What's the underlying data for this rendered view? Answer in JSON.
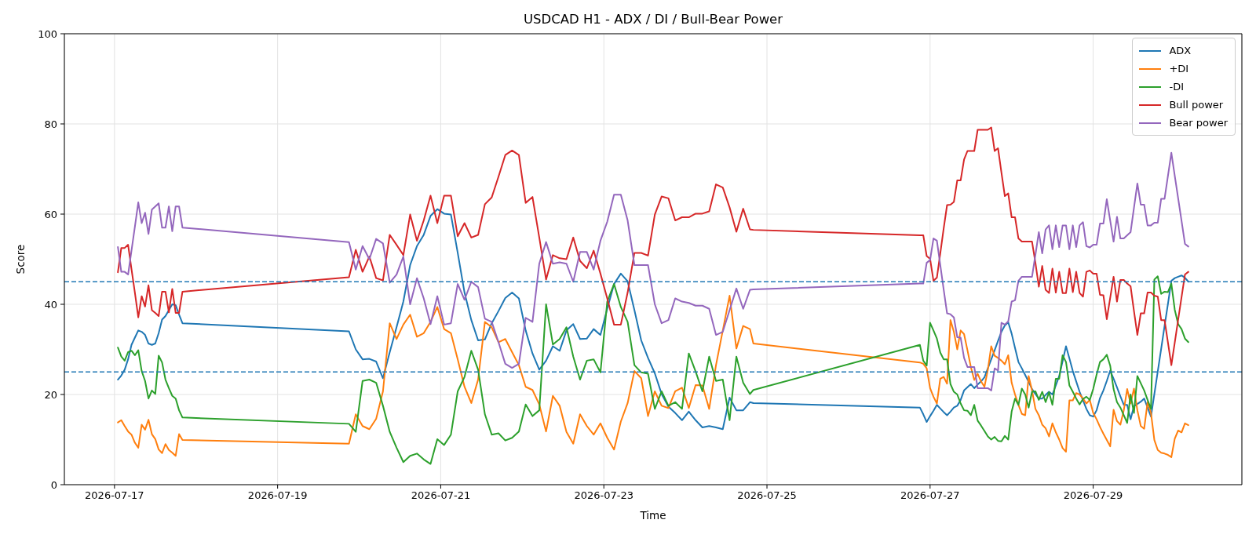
{
  "chart_data": {
    "type": "line",
    "title": "USDCAD H1 - ADX / DI / Bull-Bear Power",
    "xlabel": "Time",
    "ylabel": "Score",
    "x": [
      "2026-07-17T01:00",
      "2026-07-17T02:00",
      "2026-07-17T03:00",
      "2026-07-17T04:00",
      "2026-07-17T05:00",
      "2026-07-17T06:00",
      "2026-07-17T07:00",
      "2026-07-17T08:00",
      "2026-07-17T09:00",
      "2026-07-17T10:00",
      "2026-07-17T11:00",
      "2026-07-17T12:00",
      "2026-07-17T13:00",
      "2026-07-17T14:00",
      "2026-07-17T15:00",
      "2026-07-17T16:00",
      "2026-07-17T17:00",
      "2026-07-17T18:00",
      "2026-07-17T19:00",
      "2026-07-17T20:00",
      "2026-07-19T21:00",
      "2026-07-19T23:00",
      "2026-07-20T01:00",
      "2026-07-20T03:00",
      "2026-07-20T05:00",
      "2026-07-20T07:00",
      "2026-07-20T09:00",
      "2026-07-20T11:00",
      "2026-07-20T13:00",
      "2026-07-20T15:00",
      "2026-07-20T17:00",
      "2026-07-20T19:00",
      "2026-07-20T21:00",
      "2026-07-20T23:00",
      "2026-07-21T01:00",
      "2026-07-21T03:00",
      "2026-07-21T05:00",
      "2026-07-21T07:00",
      "2026-07-21T09:00",
      "2026-07-21T11:00",
      "2026-07-21T13:00",
      "2026-07-21T15:00",
      "2026-07-21T17:00",
      "2026-07-21T19:00",
      "2026-07-21T21:00",
      "2026-07-21T23:00",
      "2026-07-22T01:00",
      "2026-07-22T03:00",
      "2026-07-22T05:00",
      "2026-07-22T07:00",
      "2026-07-22T09:00",
      "2026-07-22T11:00",
      "2026-07-22T13:00",
      "2026-07-22T15:00",
      "2026-07-22T17:00",
      "2026-07-22T19:00",
      "2026-07-22T21:00",
      "2026-07-22T23:00",
      "2026-07-23T01:00",
      "2026-07-23T03:00",
      "2026-07-23T05:00",
      "2026-07-23T07:00",
      "2026-07-23T09:00",
      "2026-07-23T11:00",
      "2026-07-23T13:00",
      "2026-07-23T15:00",
      "2026-07-23T17:00",
      "2026-07-23T19:00",
      "2026-07-23T21:00",
      "2026-07-23T23:00",
      "2026-07-24T01:00",
      "2026-07-24T03:00",
      "2026-07-24T05:00",
      "2026-07-24T07:00",
      "2026-07-24T09:00",
      "2026-07-24T11:00",
      "2026-07-24T13:00",
      "2026-07-24T15:00",
      "2026-07-24T17:00",
      "2026-07-24T19:00",
      "2026-07-24T20:00",
      "2026-07-26T21:00",
      "2026-07-26T22:00",
      "2026-07-26T23:00",
      "2026-07-27T00:00",
      "2026-07-27T01:00",
      "2026-07-27T02:00",
      "2026-07-27T03:00",
      "2026-07-27T04:00",
      "2026-07-27T05:00",
      "2026-07-27T06:00",
      "2026-07-27T07:00",
      "2026-07-27T08:00",
      "2026-07-27T09:00",
      "2026-07-27T10:00",
      "2026-07-27T11:00",
      "2026-07-27T12:00",
      "2026-07-27T13:00",
      "2026-07-27T14:00",
      "2026-07-27T15:00",
      "2026-07-27T16:00",
      "2026-07-27T17:00",
      "2026-07-27T18:00",
      "2026-07-27T19:00",
      "2026-07-27T20:00",
      "2026-07-27T21:00",
      "2026-07-27T22:00",
      "2026-07-27T23:00",
      "2026-07-28T00:00",
      "2026-07-28T01:00",
      "2026-07-28T02:00",
      "2026-07-28T03:00",
      "2026-07-28T04:00",
      "2026-07-28T05:00",
      "2026-07-28T06:00",
      "2026-07-28T07:00",
      "2026-07-28T08:00",
      "2026-07-28T09:00",
      "2026-07-28T10:00",
      "2026-07-28T11:00",
      "2026-07-28T12:00",
      "2026-07-28T13:00",
      "2026-07-28T14:00",
      "2026-07-28T15:00",
      "2026-07-28T16:00",
      "2026-07-28T17:00",
      "2026-07-28T18:00",
      "2026-07-28T19:00",
      "2026-07-28T20:00",
      "2026-07-28T21:00",
      "2026-07-28T22:00",
      "2026-07-28T23:00",
      "2026-07-29T00:00",
      "2026-07-29T01:00",
      "2026-07-29T02:00",
      "2026-07-29T03:00",
      "2026-07-29T04:00",
      "2026-07-29T05:00",
      "2026-07-29T06:00",
      "2026-07-29T07:00",
      "2026-07-29T08:00",
      "2026-07-29T09:00",
      "2026-07-29T10:00",
      "2026-07-29T11:00",
      "2026-07-29T12:00",
      "2026-07-29T13:00",
      "2026-07-29T14:00",
      "2026-07-29T15:00",
      "2026-07-29T16:00",
      "2026-07-29T17:00",
      "2026-07-29T18:00",
      "2026-07-29T19:00",
      "2026-07-29T20:00",
      "2026-07-29T21:00",
      "2026-07-29T22:00",
      "2026-07-29T23:00",
      "2026-07-30T00:00",
      "2026-07-30T01:00",
      "2026-07-30T02:00",
      "2026-07-30T03:00",
      "2026-07-30T04:00"
    ],
    "series": [
      {
        "name": "ADX",
        "color": "#1f77b4",
        "values": [
          23.3,
          24.2,
          25.5,
          27.8,
          31.0,
          32.6,
          34.2,
          33.9,
          33.2,
          31.3,
          31.0,
          31.3,
          33.6,
          36.6,
          37.4,
          38.7,
          40.0,
          39.8,
          37.7,
          35.8,
          34.0,
          30.0,
          27.8,
          27.9,
          27.3,
          23.6,
          29.4,
          34.9,
          40.6,
          48.7,
          52.9,
          55.4,
          59.6,
          61.1,
          60.1,
          59.9,
          51.4,
          42.6,
          36.5,
          32.0,
          32.2,
          35.8,
          38.5,
          41.4,
          42.6,
          41.3,
          34.2,
          29.1,
          25.5,
          27.5,
          30.7,
          29.7,
          34.2,
          35.6,
          32.3,
          32.4,
          34.5,
          33.2,
          39.0,
          44.5,
          46.8,
          45.1,
          38.7,
          32.0,
          28.1,
          24.7,
          20.1,
          17.3,
          15.9,
          14.3,
          16.2,
          14.3,
          12.7,
          13.0,
          12.7,
          12.3,
          19.3,
          16.5,
          16.5,
          18.3,
          18.1,
          17.1,
          15.6,
          13.9,
          15.2,
          16.4,
          17.7,
          16.9,
          16.1,
          15.4,
          16.2,
          17.1,
          17.5,
          18.8,
          20.9,
          21.6,
          22.3,
          21.4,
          22.2,
          22.9,
          23.8,
          25.8,
          27.8,
          29.8,
          31.9,
          33.9,
          35.3,
          36.0,
          33.5,
          30.3,
          27.2,
          25.8,
          24.3,
          22.8,
          21.2,
          20.1,
          19.1,
          19.1,
          19.9,
          20.6,
          20.0,
          22.0,
          24.1,
          27.4,
          30.7,
          28.0,
          25.2,
          22.9,
          20.6,
          18.7,
          16.8,
          15.4,
          15.1,
          16.5,
          19.2,
          20.9,
          23.0,
          25.3,
          23.5,
          21.6,
          19.6,
          17.7,
          17.7,
          14.5,
          17.4,
          17.9,
          18.4,
          19.1,
          17.1,
          15.1,
          20.1,
          25.1,
          30.1,
          35.2,
          40.1,
          45.2,
          45.8,
          46.1,
          46.4,
          45.9,
          45.0
        ]
      },
      {
        "name": "+DI",
        "color": "#ff7f0e",
        "values": [
          13.8,
          14.3,
          13.0,
          11.8,
          11.1,
          9.3,
          8.2,
          13.3,
          12.2,
          14.4,
          11.2,
          10.1,
          7.8,
          7.0,
          9.0,
          7.7,
          7.1,
          6.4,
          11.2,
          9.9,
          9.1,
          15.6,
          13.0,
          12.3,
          14.6,
          20.7,
          35.8,
          32.3,
          35.5,
          37.7,
          32.8,
          33.6,
          36.1,
          39.4,
          34.5,
          33.6,
          27.8,
          21.7,
          18.1,
          23.3,
          36.1,
          34.9,
          31.6,
          32.3,
          29.4,
          26.5,
          21.7,
          21.0,
          17.8,
          11.8,
          19.7,
          17.5,
          11.7,
          9.1,
          15.6,
          13.0,
          11.1,
          13.6,
          10.4,
          7.8,
          14.0,
          18.1,
          25.2,
          23.6,
          15.2,
          20.7,
          17.5,
          17.0,
          20.7,
          21.5,
          17.0,
          22.1,
          22.0,
          16.8,
          26.5,
          34.2,
          41.9,
          30.2,
          35.2,
          34.5,
          31.3,
          27.1,
          26.8,
          25.8,
          21.4,
          19.5,
          18.0,
          23.5,
          23.9,
          22.4,
          36.5,
          33.9,
          30.0,
          34.2,
          33.4,
          29.8,
          26.1,
          23.2,
          24.6,
          22.9,
          21.7,
          25.5,
          30.7,
          28.6,
          28.1,
          27.5,
          26.7,
          28.7,
          22.6,
          20.0,
          17.7,
          15.7,
          15.4,
          24.1,
          20.9,
          16.8,
          15.4,
          13.3,
          12.5,
          10.7,
          13.6,
          11.6,
          10.0,
          8.1,
          7.3,
          18.7,
          18.7,
          20.3,
          20.0,
          19.1,
          18.0,
          18.8,
          15.9,
          14.5,
          12.8,
          11.3,
          9.9,
          8.5,
          16.6,
          14.1,
          13.3,
          16.5,
          21.2,
          18.0,
          21.3,
          16.5,
          13.0,
          12.4,
          18.3,
          15.9,
          9.9,
          7.7,
          7.1,
          6.9,
          6.6,
          6.1,
          10.2,
          12.0,
          11.6,
          13.6,
          13.2
        ]
      },
      {
        "name": "-DI",
        "color": "#2ca02c",
        "values": [
          30.4,
          28.4,
          27.5,
          29.4,
          29.7,
          28.7,
          29.8,
          25.2,
          23.0,
          19.1,
          20.9,
          20.1,
          28.6,
          27.1,
          23.3,
          21.4,
          19.7,
          19.1,
          16.5,
          14.9,
          13.5,
          11.7,
          23.0,
          23.3,
          22.6,
          17.5,
          11.7,
          8.2,
          5.0,
          6.4,
          6.9,
          5.6,
          4.6,
          10.1,
          8.8,
          11.1,
          20.7,
          23.9,
          29.7,
          25.5,
          15.6,
          11.1,
          11.4,
          9.8,
          10.4,
          11.8,
          17.8,
          15.2,
          16.5,
          40.0,
          31.1,
          32.3,
          34.9,
          28.4,
          23.3,
          27.5,
          27.8,
          24.9,
          40.6,
          44.5,
          39.4,
          36.1,
          26.5,
          24.9,
          24.6,
          16.8,
          20.7,
          17.5,
          18.3,
          16.8,
          29.1,
          25.1,
          20.7,
          28.4,
          23.0,
          23.3,
          14.3,
          28.4,
          22.6,
          20.1,
          21.0,
          31.0,
          27.5,
          26.4,
          35.9,
          34.2,
          32.4,
          29.3,
          27.8,
          27.8,
          22.3,
          20.6,
          20.0,
          18.0,
          16.5,
          16.4,
          15.4,
          17.7,
          14.2,
          13.1,
          11.9,
          10.7,
          10.0,
          10.6,
          9.7,
          9.6,
          10.8,
          10.0,
          16.2,
          19.1,
          17.7,
          21.3,
          20.0,
          17.1,
          20.6,
          20.7,
          18.8,
          20.6,
          18.3,
          20.5,
          17.7,
          23.5,
          23.5,
          28.7,
          27.2,
          22.0,
          20.6,
          19.1,
          17.8,
          19.0,
          19.5,
          18.8,
          21.2,
          24.4,
          27.2,
          27.8,
          28.8,
          26.4,
          21.2,
          18.3,
          17.1,
          15.4,
          13.7,
          20.0,
          15.9,
          24.1,
          22.5,
          20.9,
          18.8,
          16.8,
          45.5,
          46.2,
          42.3,
          42.8,
          42.7,
          44.6,
          38.8,
          35.6,
          34.5,
          32.4,
          31.6
        ]
      },
      {
        "name": "Bull power",
        "color": "#d62728",
        "values": [
          47.1,
          52.5,
          52.5,
          53.2,
          47.8,
          42.6,
          37.1,
          41.8,
          39.5,
          44.2,
          38.7,
          38.1,
          37.4,
          42.8,
          42.8,
          38.2,
          43.4,
          38.1,
          38.1,
          42.8,
          46.0,
          52.1,
          47.2,
          50.6,
          45.8,
          45.3,
          55.4,
          53.2,
          50.9,
          59.9,
          54.1,
          58.6,
          64.1,
          58.0,
          64.1,
          64.1,
          55.1,
          58.0,
          54.8,
          55.4,
          62.2,
          63.7,
          68.3,
          73.1,
          74.1,
          73.1,
          62.5,
          63.8,
          54.8,
          45.5,
          50.9,
          50.2,
          50.0,
          54.8,
          49.6,
          48.0,
          51.9,
          46.8,
          41.3,
          35.5,
          35.5,
          42.6,
          51.4,
          51.4,
          50.8,
          59.9,
          63.9,
          63.5,
          58.6,
          59.3,
          59.3,
          60.1,
          60.1,
          60.6,
          66.6,
          65.9,
          61.5,
          56.1,
          61.2,
          56.6,
          56.5,
          55.3,
          55.3,
          50.7,
          50.1,
          45.2,
          45.9,
          51.3,
          56.8,
          62.0,
          62.1,
          62.7,
          67.5,
          67.5,
          72.1,
          74.0,
          74.0,
          74.0,
          78.7,
          78.7,
          78.7,
          78.7,
          79.2,
          74.0,
          74.6,
          69.2,
          64.0,
          64.6,
          59.3,
          59.3,
          54.6,
          53.9,
          53.9,
          53.9,
          53.9,
          49.2,
          43.9,
          48.5,
          43.2,
          42.5,
          47.9,
          42.6,
          47.2,
          42.5,
          42.5,
          47.9,
          42.7,
          47.2,
          42.5,
          41.7,
          47.2,
          47.5,
          46.8,
          46.8,
          42.1,
          42.0,
          36.7,
          41.4,
          46.1,
          40.6,
          45.4,
          45.4,
          44.6,
          44.0,
          38.5,
          33.2,
          38.0,
          38.0,
          42.6,
          42.6,
          41.9,
          41.7,
          36.5,
          36.5,
          31.5,
          26.5,
          31.5,
          36.6,
          41.6,
          46.6,
          47.2
        ]
      },
      {
        "name": "Bear power",
        "color": "#9467bd",
        "values": [
          52.7,
          47.2,
          47.2,
          46.6,
          51.9,
          57.2,
          62.6,
          58.0,
          60.3,
          55.6,
          61.0,
          61.7,
          62.4,
          57.0,
          57.0,
          61.7,
          56.2,
          61.7,
          61.7,
          57.0,
          53.8,
          47.7,
          52.9,
          50.0,
          54.5,
          53.5,
          44.8,
          46.6,
          50.6,
          40.0,
          45.8,
          41.3,
          35.6,
          41.8,
          35.5,
          35.8,
          44.5,
          41.0,
          45.0,
          43.8,
          36.8,
          36.1,
          31.6,
          26.8,
          25.9,
          26.8,
          37.0,
          36.1,
          49.0,
          53.8,
          49.0,
          49.3,
          49.0,
          45.0,
          51.6,
          51.6,
          47.7,
          54.1,
          58.3,
          64.3,
          64.3,
          58.6,
          48.7,
          48.7,
          48.7,
          40.0,
          35.8,
          36.5,
          41.3,
          40.6,
          40.3,
          39.7,
          39.7,
          39.0,
          33.2,
          33.9,
          38.7,
          43.5,
          39.0,
          43.2,
          43.3,
          44.6,
          44.6,
          49.2,
          49.8,
          54.6,
          54.1,
          48.7,
          43.3,
          38.0,
          37.8,
          37.1,
          32.7,
          32.6,
          28.1,
          26.1,
          26.1,
          26.1,
          21.4,
          21.4,
          21.4,
          21.4,
          20.9,
          25.8,
          25.3,
          35.9,
          35.5,
          36.2,
          40.6,
          40.9,
          45.2,
          46.1,
          46.1,
          46.1,
          46.1,
          51.0,
          56.0,
          51.3,
          56.6,
          57.5,
          52.2,
          57.5,
          52.7,
          57.5,
          57.5,
          52.2,
          57.5,
          52.7,
          57.5,
          58.2,
          52.9,
          52.6,
          53.2,
          53.2,
          57.9,
          57.9,
          63.3,
          58.6,
          53.9,
          59.4,
          54.6,
          54.6,
          55.3,
          56.0,
          61.4,
          66.8,
          62.1,
          62.1,
          57.5,
          57.5,
          58.1,
          58.1,
          63.4,
          63.4,
          68.5,
          73.6,
          68.5,
          63.5,
          58.5,
          53.4,
          52.8
        ]
      }
    ],
    "xlim": [
      "2026-07-16T09:15",
      "2026-07-30T19:45"
    ],
    "xticks": [
      "2026-07-17",
      "2026-07-19",
      "2026-07-21",
      "2026-07-23",
      "2026-07-25",
      "2026-07-27",
      "2026-07-29"
    ],
    "ylim": [
      0,
      100
    ],
    "yticks": [
      0,
      20,
      40,
      60,
      80,
      100
    ],
    "ref_lines": [
      {
        "axis": "y",
        "value": 45,
        "color": "#1f77b4",
        "line_style": "dashed"
      },
      {
        "axis": "y",
        "value": 25,
        "color": "#1f77b4",
        "line_style": "dashed"
      }
    ],
    "grid": true,
    "legend": "top right"
  }
}
